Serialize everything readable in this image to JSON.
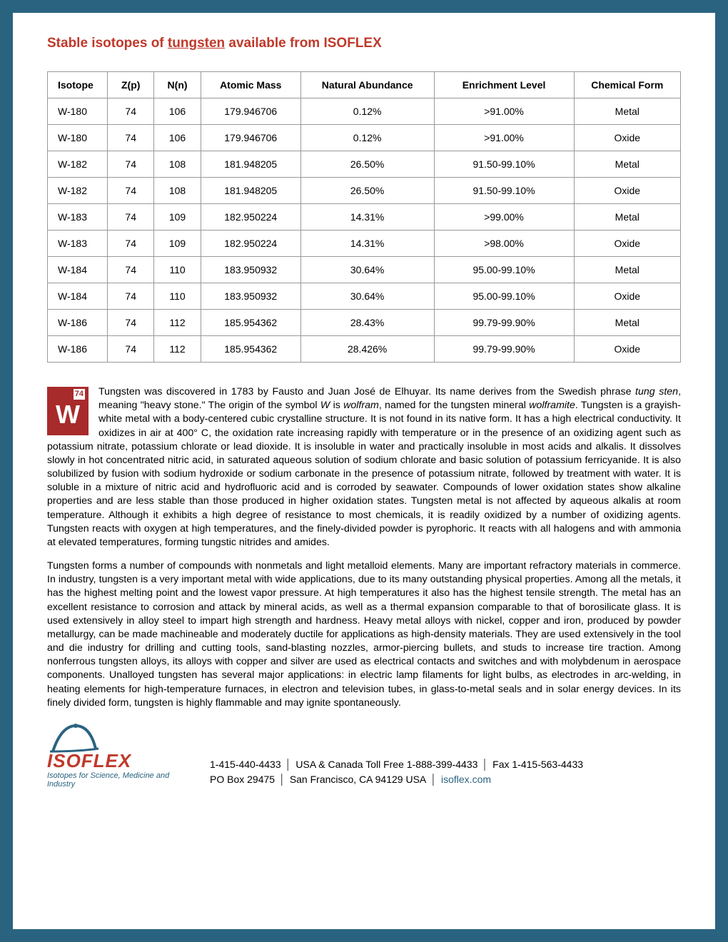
{
  "title_prefix": "Stable isotopes of ",
  "title_element": "tungsten",
  "title_suffix": " available from ISOFLEX",
  "table": {
    "columns": [
      "Isotope",
      "Z(p)",
      "N(n)",
      "Atomic Mass",
      "Natural Abundance",
      "Enrichment Level",
      "Chemical Form"
    ],
    "rows": [
      [
        "W-180",
        "74",
        "106",
        "179.946706",
        "0.12%",
        ">91.00%",
        "Metal"
      ],
      [
        "W-180",
        "74",
        "106",
        "179.946706",
        "0.12%",
        ">91.00%",
        "Oxide"
      ],
      [
        "W-182",
        "74",
        "108",
        "181.948205",
        "26.50%",
        "91.50-99.10%",
        "Metal"
      ],
      [
        "W-182",
        "74",
        "108",
        "181.948205",
        "26.50%",
        "91.50-99.10%",
        "Oxide"
      ],
      [
        "W-183",
        "74",
        "109",
        "182.950224",
        "14.31%",
        ">99.00%",
        "Metal"
      ],
      [
        "W-183",
        "74",
        "109",
        "182.950224",
        "14.31%",
        ">98.00%",
        "Oxide"
      ],
      [
        "W-184",
        "74",
        "110",
        "183.950932",
        "30.64%",
        "95.00-99.10%",
        "Metal"
      ],
      [
        "W-184",
        "74",
        "110",
        "183.950932",
        "30.64%",
        "95.00-99.10%",
        "Oxide"
      ],
      [
        "W-186",
        "74",
        "112",
        "185.954362",
        "28.43%",
        "99.79-99.90%",
        "Metal"
      ],
      [
        "W-186",
        "74",
        "112",
        "185.954362",
        "28.426%",
        "99.79-99.90%",
        "Oxide"
      ]
    ]
  },
  "element_tile": {
    "atomic_number": "74",
    "symbol": "W"
  },
  "para1_a": "Tungsten was discovered in 1783 by Fausto and Juan José de Elhuyar. Its name derives from the Swedish phrase ",
  "para1_i1": "tung sten",
  "para1_b": ", meaning \"heavy stone.\" The origin of the symbol ",
  "para1_i2": "W",
  "para1_c": " is ",
  "para1_i3": "wolfram",
  "para1_d": ", named for the tungsten mineral ",
  "para1_i4": "wolframite",
  "para1_e": ". Tungsten is a grayish-white metal with a body-centered cubic crystalline structure. It is not found in its native form. It has a high electrical conductivity. It oxidizes in air at 400° C, the oxidation rate increasing rapidly with temperature or in the presence of an oxidizing agent such as potassium nitrate, potassium chlorate or lead dioxide. It is insoluble in water and practically insoluble in most acids and alkalis. It dissolves slowly in hot concentrated nitric acid, in saturated aqueous solution of sodium chlorate and basic solution of potassium ferricyanide. It is also solubilized by fusion with sodium hydroxide or sodium carbonate in the presence of potassium nitrate, followed by treatment with water. It is soluble in a mixture of nitric acid and hydrofluoric acid and is corroded by seawater. Compounds of lower oxidation states show alkaline properties and are less stable than those produced in higher oxidation states. Tungsten metal is not affected by aqueous alkalis at room temperature. Although it exhibits a high degree of resistance to most chemicals, it is readily oxidized by a number of oxidizing agents. Tungsten reacts with oxygen at high temperatures, and the finely-divided powder is pyrophoric. It reacts with all halogens and with ammonia at elevated temperatures, forming tungstic nitrides and amides.",
  "para2": "Tungsten forms a number of compounds with nonmetals and light metalloid elements. Many are important refractory materials in commerce. In industry, tungsten is a very important metal with wide applications, due to its many outstanding physical properties. Among all the metals, it has the highest melting point and the lowest vapor pressure. At high temperatures it also has the highest tensile strength. The metal has an excellent resistance to corrosion and attack by mineral acids, as well as a thermal expansion comparable to that of borosilicate glass. It is used extensively in alloy steel to impart high strength and hardness. Heavy metal alloys with nickel, copper and iron, produced by powder metallurgy, can be made machineable and moderately ductile for applications as high-density materials. They are used extensively in the tool and die industry for drilling and cutting tools, sand-blasting nozzles, armor-piercing bullets, and studs to increase tire traction. Among nonferrous tungsten alloys, its alloys with copper and silver are used as electrical contacts and switches and with molybdenum in aerospace components. Unalloyed tungsten has several major applications: in electric lamp filaments for light bulbs, as electrodes in arc-welding, in heating elements for high-temperature furnaces, in electron and television tubes, in glass-to-metal seals and in solar energy devices. In its finely divided form, tungsten is highly flammable and may ignite spontaneously.",
  "logo": {
    "name": "ISOFLEX",
    "tagline": "Isotopes for Science, Medicine and Industry"
  },
  "contact": {
    "line1_a": "1-415-440-4433",
    "line1_b": "USA & Canada Toll Free 1-888-399-4433",
    "line1_c": "Fax 1-415-563-4433",
    "line2_a": "PO Box 29475",
    "line2_b": "San Francisco, CA 94129  USA",
    "line2_c": "isoflex.com"
  },
  "colors": {
    "frame": "#2a6380",
    "accent": "#c0392b",
    "tile_bg": "#a82b2b",
    "border": "#999999"
  }
}
